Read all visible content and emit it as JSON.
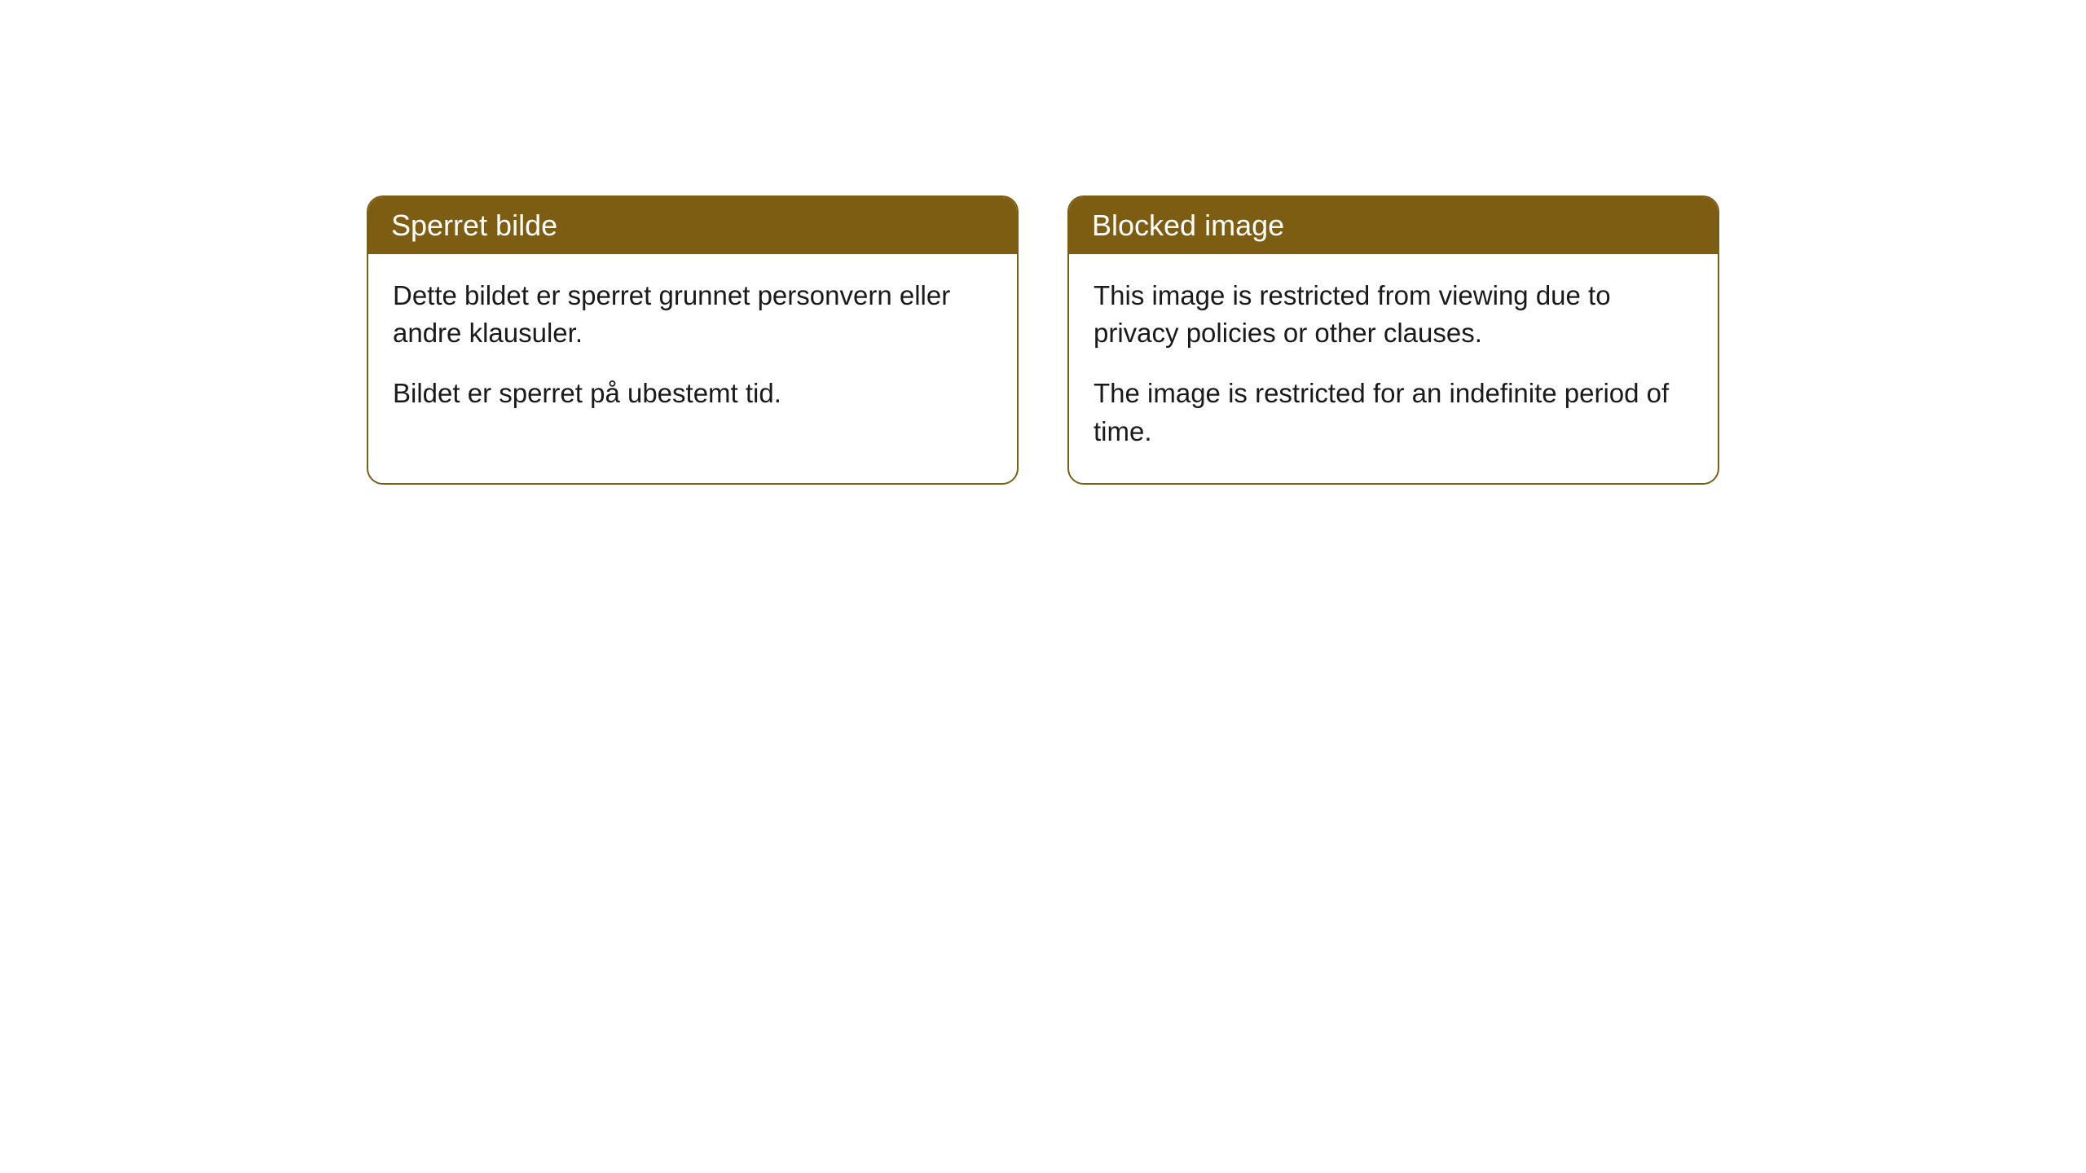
{
  "cards": [
    {
      "title": "Sperret bilde",
      "paragraph1": "Dette bildet er sperret grunnet personvern eller andre klausuler.",
      "paragraph2": "Bildet er sperret på ubestemt tid."
    },
    {
      "title": "Blocked image",
      "paragraph1": "This image is restricted from viewing due to privacy policies or other clauses.",
      "paragraph2": "The image is restricted for an indefinite period of time."
    }
  ],
  "styling": {
    "header_bg_color": "#7d5d12",
    "header_text_color": "#ffffff",
    "border_color": "#7d5d12",
    "body_text_color": "#1a1a1a",
    "card_bg_color": "#ffffff",
    "page_bg_color": "#ffffff",
    "border_radius": "20px",
    "header_fontsize": 36,
    "body_fontsize": 33
  }
}
